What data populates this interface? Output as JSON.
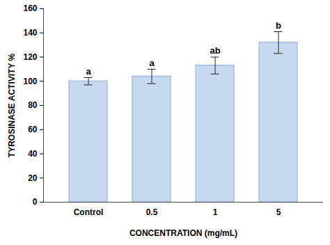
{
  "chart_data": {
    "type": "bar",
    "categories": [
      "Control",
      "0.5",
      "1",
      "5"
    ],
    "values": [
      100,
      104,
      113,
      132
    ],
    "errors": [
      3,
      6,
      7,
      9
    ],
    "annotations": [
      "a",
      "a",
      "ab",
      "b"
    ],
    "color": "#c6d9f0",
    "x_label": "CONCENTRATION (mg/mL)",
    "y_label": "TYROSINASE ACTIVITY %",
    "ylim": [
      0,
      160
    ],
    "yticks": [
      0,
      20,
      40,
      60,
      80,
      100,
      120,
      140,
      160
    ],
    "grid": false
  }
}
